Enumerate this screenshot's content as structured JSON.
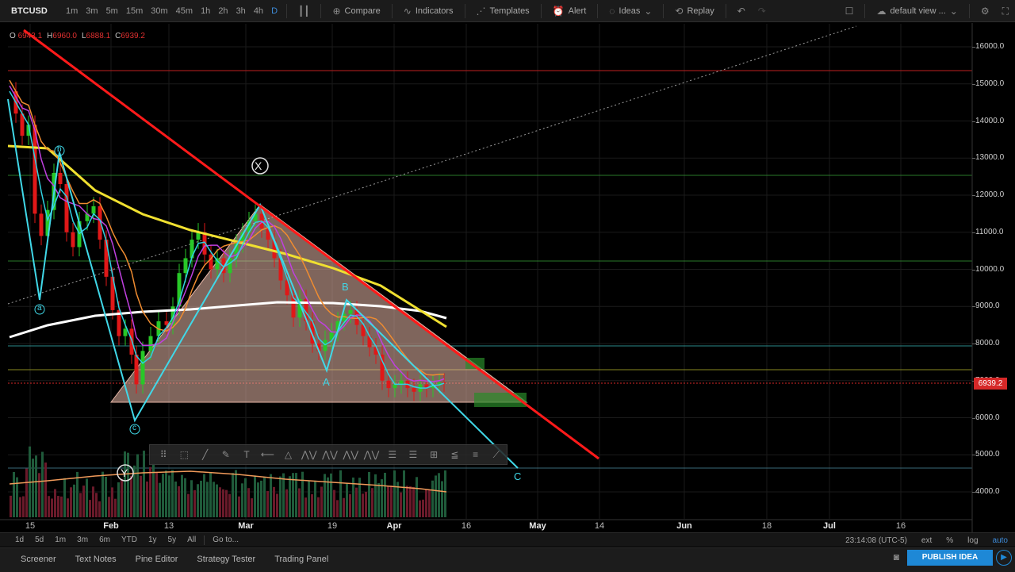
{
  "toolbar": {
    "symbol": "BTCUSD",
    "timeframes": [
      "1m",
      "3m",
      "5m",
      "15m",
      "30m",
      "45m",
      "1h",
      "2h",
      "3h",
      "4h",
      "D"
    ],
    "active_timeframe": "D",
    "compare": "Compare",
    "indicators": "Indicators",
    "templates": "Templates",
    "alert": "Alert",
    "ideas": "Ideas",
    "replay": "Replay",
    "default_view": "default view ..."
  },
  "ohlc": {
    "o_label": "O",
    "o_value": "6943.1",
    "h_label": "H",
    "h_value": "6960.0",
    "l_label": "L",
    "l_value": "6888.1",
    "c_label": "C",
    "c_value": "6939.2"
  },
  "price_axis": [
    "16000.0",
    "15000.0",
    "14000.0",
    "13000.0",
    "12000.0",
    "11000.0",
    "10000.0",
    "9000.0",
    "8000.0",
    "7000.0",
    "6000.0",
    "5000.0",
    "4000.0"
  ],
  "last_price": "6939.2",
  "time_axis": [
    {
      "label": "15",
      "bold": false
    },
    {
      "label": "Feb",
      "bold": true
    },
    {
      "label": "13",
      "bold": false
    },
    {
      "label": "Mar",
      "bold": true
    },
    {
      "label": "19",
      "bold": false
    },
    {
      "label": "Apr",
      "bold": true
    },
    {
      "label": "16",
      "bold": false
    },
    {
      "label": "May",
      "bold": true
    },
    {
      "label": "14",
      "bold": false
    },
    {
      "label": "Jun",
      "bold": true
    },
    {
      "label": "18",
      "bold": false
    },
    {
      "label": "Jul",
      "bold": true
    },
    {
      "label": "16",
      "bold": false
    }
  ],
  "wave_labels": {
    "x": "X",
    "y": "Y",
    "a_small": "a",
    "b_small": "b",
    "c_small": "c",
    "a_big": "A",
    "b_big": "B",
    "c_big": "C"
  },
  "range_bar": {
    "ranges": [
      "1d",
      "5d",
      "1m",
      "3m",
      "6m",
      "YTD",
      "1y",
      "5y",
      "All"
    ],
    "goto": "Go to...",
    "clock": "23:14:08 (UTC-5)",
    "ext": "ext",
    "percent": "%",
    "log": "log",
    "auto": "auto"
  },
  "bottom_tabs": [
    "Screener",
    "Text Notes",
    "Pine Editor",
    "Strategy Tester",
    "Trading Panel"
  ],
  "publish": "PUBLISH IDEA",
  "colors": {
    "trendline": "#ff1a1a",
    "ema_yellow": "#f0e030",
    "ema_orange": "#f08c30",
    "ema_purple": "#c040e0",
    "ema_cyan": "#30d0e0",
    "ma_white": "#ffffff",
    "up_candle": "#28c828",
    "down_candle": "#e01818",
    "triangle_fill": "#e8b8a8"
  }
}
